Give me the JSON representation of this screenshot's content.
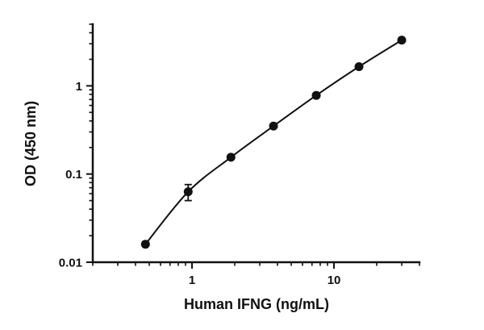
{
  "chart_data": {
    "type": "scatter",
    "title": "",
    "xlabel": "Human IFNG (ng/mL)",
    "ylabel": "OD (450 nm)",
    "x_scale": "log",
    "y_scale": "log",
    "xlim": [
      0.2,
      40
    ],
    "ylim": [
      0.01,
      5
    ],
    "grid": false,
    "legend": "none",
    "x_tick_labels": [
      {
        "value": 1,
        "label": "1"
      },
      {
        "value": 10,
        "label": "10"
      }
    ],
    "y_tick_labels": [
      {
        "value": 0.01,
        "label": "0.01"
      },
      {
        "value": 0.1,
        "label": "0.1"
      },
      {
        "value": 1,
        "label": "1"
      }
    ],
    "points": [
      {
        "x": 0.47,
        "y": 0.016
      },
      {
        "x": 0.94,
        "y": 0.063,
        "y_err": 0.013
      },
      {
        "x": 1.88,
        "y": 0.155
      },
      {
        "x": 3.75,
        "y": 0.35
      },
      {
        "x": 7.5,
        "y": 0.78
      },
      {
        "x": 15,
        "y": 1.65
      },
      {
        "x": 30,
        "y": 3.3
      }
    ],
    "marker": {
      "shape": "circle",
      "color": "#111111",
      "size": 5.5
    },
    "line": {
      "color": "#111111",
      "width": 2
    }
  }
}
